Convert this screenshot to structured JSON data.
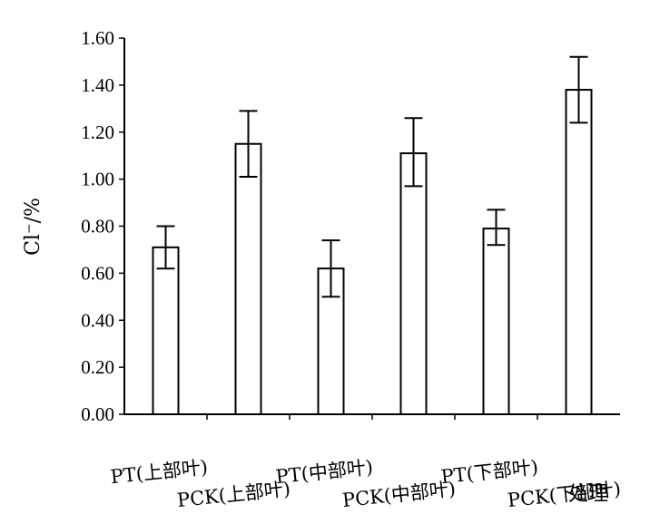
{
  "chart_data": {
    "type": "bar",
    "title": "",
    "xlabel": "处理",
    "ylabel": "Cl⁻/%",
    "ylim": [
      0,
      1.6
    ],
    "yticks": [
      "0.00",
      "0.20",
      "0.40",
      "0.60",
      "0.80",
      "1.00",
      "1.20",
      "1.40",
      "1.60"
    ],
    "categories": [
      "PT(上部叶)",
      "PCK(上部叶)",
      "PT(中部叶)",
      "PCK(中部叶)",
      "PT(下部叶)",
      "PCK(下部叶)"
    ],
    "values": [
      0.71,
      1.15,
      0.62,
      1.11,
      0.79,
      1.38
    ],
    "error_upper": [
      0.8,
      1.29,
      0.74,
      1.26,
      0.87,
      1.52
    ],
    "error_lower": [
      0.62,
      1.01,
      0.5,
      0.97,
      0.72,
      1.24
    ],
    "grid": false,
    "legend": "none",
    "colors": {
      "bar_fill": "#ffffff",
      "stroke": "#000000"
    }
  }
}
